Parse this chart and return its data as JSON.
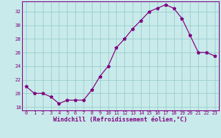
{
  "x": [
    0,
    1,
    2,
    3,
    4,
    5,
    6,
    7,
    8,
    9,
    10,
    11,
    12,
    13,
    14,
    15,
    16,
    17,
    18,
    19,
    20,
    21,
    22,
    23
  ],
  "y": [
    21.0,
    20.0,
    20.0,
    19.5,
    18.5,
    19.0,
    19.0,
    19.0,
    20.5,
    22.5,
    24.0,
    26.7,
    28.0,
    29.5,
    30.7,
    32.0,
    32.5,
    33.0,
    32.5,
    31.0,
    28.5,
    26.0,
    26.0,
    25.5
  ],
  "line_color": "#800080",
  "marker": "*",
  "marker_size": 3.5,
  "background_color": "#c8eaea",
  "grid_color": "#99cccc",
  "xlabel": "Windchill (Refroidissement éolien,°C)",
  "xlim": [
    -0.5,
    23.5
  ],
  "ylim": [
    17.5,
    33.5
  ],
  "yticks": [
    18,
    20,
    22,
    24,
    26,
    28,
    30,
    32
  ],
  "xticks": [
    0,
    1,
    2,
    3,
    4,
    5,
    6,
    7,
    8,
    9,
    10,
    11,
    12,
    13,
    14,
    15,
    16,
    17,
    18,
    19,
    20,
    21,
    22,
    23
  ],
  "axis_color": "#800080",
  "label_color": "#800080"
}
